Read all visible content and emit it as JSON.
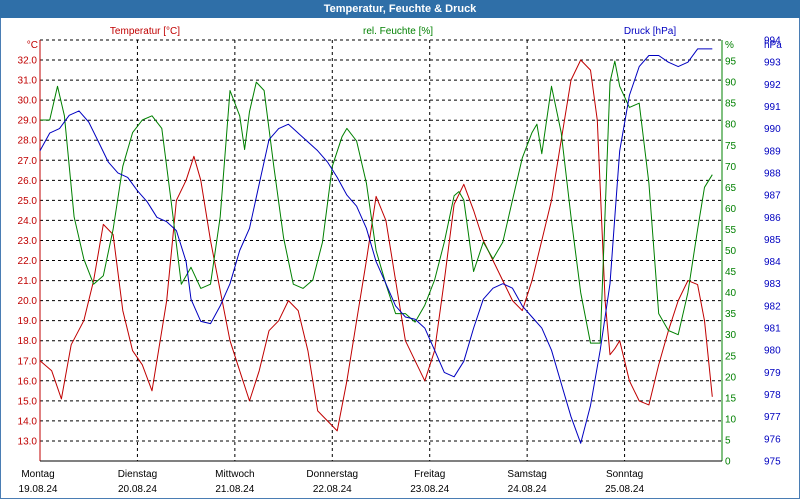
{
  "window": {
    "title": "Temperatur, Feuchte & Druck"
  },
  "colors": {
    "temperature": "#c00000",
    "humidity": "#008000",
    "pressure": "#0000c0",
    "grid": "#000000",
    "title_bar": "#2f6fa8"
  },
  "chart_data": {
    "type": "line",
    "title": "Temperatur, Feuchte & Druck",
    "axes": {
      "temperature": {
        "label": "Temperatur [°C]",
        "unit": "°C",
        "range": [
          12.0,
          33.0
        ],
        "ticks": [
          "13.0",
          "14.0",
          "15.0",
          "16.0",
          "17.0",
          "18.0",
          "19.0",
          "20.0",
          "21.0",
          "22.0",
          "23.0",
          "24.0",
          "25.0",
          "26.0",
          "27.0",
          "28.0",
          "29.0",
          "30.0",
          "31.0",
          "32.0"
        ]
      },
      "humidity": {
        "label": "rel. Feuchte [%]",
        "unit": "%",
        "range": [
          0,
          100
        ],
        "ticks": [
          "0",
          "5",
          "10",
          "15",
          "20",
          "25",
          "30",
          "35",
          "40",
          "45",
          "50",
          "55",
          "60",
          "65",
          "70",
          "75",
          "80",
          "85",
          "90",
          "95"
        ]
      },
      "pressure": {
        "label": "Druck [hPa]",
        "unit": "hPa",
        "range": [
          975,
          994
        ],
        "ticks": [
          "975",
          "976",
          "977",
          "978",
          "979",
          "980",
          "981",
          "982",
          "983",
          "984",
          "985",
          "986",
          "987",
          "988",
          "989",
          "990",
          "991",
          "992",
          "993",
          "994"
        ]
      }
    },
    "x_axis": {
      "range": [
        0,
        7
      ],
      "days": [
        {
          "name": "Montag",
          "date": "19.08.24"
        },
        {
          "name": "Dienstag",
          "date": "20.08.24"
        },
        {
          "name": "Mittwoch",
          "date": "21.08.24"
        },
        {
          "name": "Donnerstag",
          "date": "22.08.24"
        },
        {
          "name": "Freitag",
          "date": "23.08.24"
        },
        {
          "name": "Samstag",
          "date": "24.08.24"
        },
        {
          "name": "Sonntag",
          "date": "25.08.24"
        }
      ]
    },
    "grid": true,
    "series": [
      {
        "name": "Temperatur [°C]",
        "axis": "temperature",
        "x": [
          0.0,
          0.12,
          0.22,
          0.32,
          0.45,
          0.55,
          0.65,
          0.75,
          0.85,
          0.95,
          1.05,
          1.15,
          1.3,
          1.4,
          1.5,
          1.58,
          1.65,
          1.75,
          1.85,
          1.95,
          2.05,
          2.15,
          2.25,
          2.35,
          2.45,
          2.55,
          2.65,
          2.75,
          2.85,
          3.05,
          3.15,
          3.25,
          3.35,
          3.45,
          3.55,
          3.65,
          3.75,
          3.85,
          3.95,
          4.05,
          4.15,
          4.25,
          4.35,
          4.45,
          4.55,
          4.65,
          4.75,
          4.85,
          4.95,
          5.05,
          5.15,
          5.25,
          5.35,
          5.45,
          5.55,
          5.65,
          5.72,
          5.8,
          5.85,
          5.9,
          5.95,
          6.05,
          6.15,
          6.25,
          6.35,
          6.45,
          6.55,
          6.65,
          6.75,
          6.82,
          6.9
        ],
        "values": [
          17.0,
          16.5,
          15.1,
          17.8,
          19.0,
          21.0,
          23.8,
          23.3,
          19.5,
          17.5,
          16.8,
          15.5,
          20.0,
          25.0,
          26.0,
          27.2,
          26.0,
          23.0,
          20.5,
          18.0,
          16.5,
          15.0,
          16.5,
          18.5,
          19.0,
          20.0,
          19.5,
          17.5,
          14.5,
          13.5,
          16.0,
          19.0,
          22.0,
          25.2,
          24.0,
          21.0,
          18.0,
          17.0,
          16.0,
          17.5,
          21.0,
          24.8,
          25.8,
          24.5,
          23.0,
          22.0,
          21.0,
          20.0,
          19.5,
          21.0,
          23.0,
          25.0,
          28.0,
          31.0,
          32.0,
          31.5,
          29.0,
          20.0,
          17.3,
          17.6,
          18.0,
          16.0,
          15.0,
          14.8,
          16.8,
          18.5,
          20.0,
          21.0,
          20.8,
          19.0,
          15.2
        ]
      },
      {
        "name": "rel. Feuchte [%]",
        "axis": "humidity",
        "x": [
          0.0,
          0.1,
          0.18,
          0.25,
          0.35,
          0.45,
          0.55,
          0.65,
          0.75,
          0.85,
          0.95,
          1.05,
          1.15,
          1.25,
          1.35,
          1.45,
          1.55,
          1.65,
          1.75,
          1.85,
          1.95,
          2.05,
          2.1,
          2.15,
          2.22,
          2.3,
          2.4,
          2.5,
          2.6,
          2.7,
          2.8,
          2.9,
          3.0,
          3.1,
          3.15,
          3.25,
          3.35,
          3.45,
          3.55,
          3.65,
          3.75,
          3.85,
          3.95,
          4.05,
          4.15,
          4.25,
          4.3,
          4.35,
          4.45,
          4.55,
          4.65,
          4.75,
          4.85,
          4.95,
          5.05,
          5.1,
          5.15,
          5.25,
          5.35,
          5.45,
          5.55,
          5.65,
          5.75,
          5.85,
          5.9,
          5.95,
          6.05,
          6.15,
          6.25,
          6.35,
          6.45,
          6.55,
          6.65,
          6.75,
          6.82,
          6.9
        ],
        "values": [
          81,
          81,
          89,
          82,
          58,
          48,
          42,
          44,
          55,
          70,
          78,
          81,
          82,
          79,
          61,
          42,
          46,
          41,
          42,
          58,
          88,
          82,
          74,
          83,
          90,
          88,
          70,
          53,
          42,
          41,
          43,
          52,
          70,
          77,
          79,
          76,
          66,
          50,
          42,
          35,
          35,
          33,
          37,
          43,
          52,
          63,
          64,
          62,
          45,
          52,
          48,
          52,
          62,
          72,
          78,
          80,
          73,
          89,
          78,
          58,
          40,
          28,
          28,
          90,
          95,
          89,
          84,
          85,
          66,
          35,
          31,
          30,
          40,
          55,
          65,
          68
        ]
      },
      {
        "name": "Druck [hPa]",
        "axis": "pressure",
        "x": [
          0.0,
          0.1,
          0.2,
          0.3,
          0.4,
          0.5,
          0.6,
          0.7,
          0.8,
          0.9,
          1.0,
          1.1,
          1.2,
          1.3,
          1.4,
          1.5,
          1.55,
          1.65,
          1.75,
          1.85,
          1.95,
          2.05,
          2.15,
          2.25,
          2.35,
          2.45,
          2.55,
          2.65,
          2.75,
          2.85,
          2.95,
          3.05,
          3.15,
          3.25,
          3.35,
          3.45,
          3.55,
          3.65,
          3.75,
          3.85,
          3.95,
          4.05,
          4.15,
          4.25,
          4.35,
          4.45,
          4.55,
          4.65,
          4.75,
          4.85,
          4.95,
          5.05,
          5.15,
          5.25,
          5.35,
          5.45,
          5.55,
          5.65,
          5.75,
          5.85,
          5.9,
          5.95,
          6.05,
          6.15,
          6.25,
          6.35,
          6.45,
          6.55,
          6.65,
          6.75,
          6.82,
          6.9
        ],
        "values": [
          989.0,
          989.8,
          990.0,
          990.6,
          990.8,
          990.3,
          989.4,
          988.5,
          988.0,
          987.8,
          987.2,
          986.7,
          986.0,
          985.8,
          985.4,
          984.0,
          982.3,
          981.3,
          981.2,
          982.0,
          983.0,
          984.5,
          985.5,
          987.5,
          989.5,
          990.0,
          990.2,
          989.8,
          989.4,
          989.0,
          988.5,
          987.8,
          987.0,
          986.5,
          985.5,
          984.0,
          983.0,
          982.0,
          981.5,
          981.4,
          981.0,
          980.0,
          979.0,
          978.8,
          979.5,
          981.0,
          982.3,
          982.8,
          983.0,
          982.8,
          982.0,
          981.5,
          981.0,
          980.0,
          978.5,
          977.0,
          975.8,
          977.5,
          980.0,
          983.0,
          986.0,
          989.0,
          991.5,
          992.8,
          993.3,
          993.3,
          993.0,
          992.8,
          993.0,
          993.6,
          993.6,
          993.6
        ]
      }
    ]
  }
}
